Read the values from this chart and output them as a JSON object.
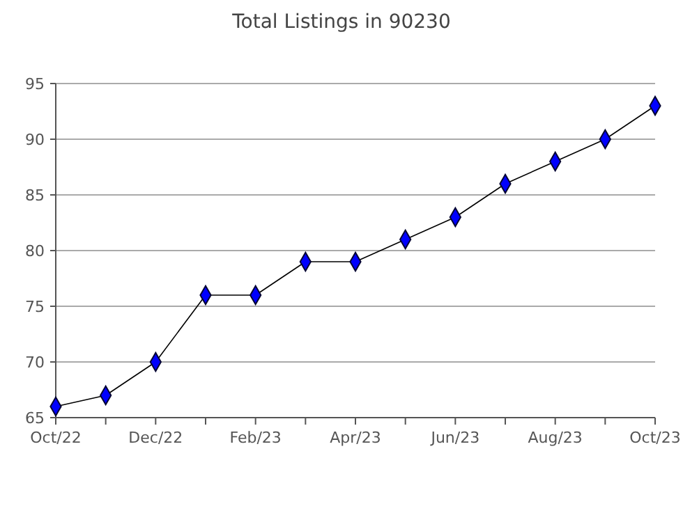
{
  "chart_data": {
    "type": "line",
    "title": "Total Listings in 90230",
    "categories": [
      "Oct/22",
      null,
      "Dec/22",
      null,
      "Feb/23",
      null,
      "Apr/23",
      null,
      "Jun/23",
      null,
      "Aug/23",
      null,
      "Oct/23"
    ],
    "series": [
      {
        "color": "#0000ff",
        "values": [
          66,
          67,
          70,
          76,
          76,
          79,
          79,
          81,
          83,
          86,
          88,
          90,
          93
        ]
      }
    ],
    "ylim": [
      65,
      95
    ],
    "yticks": [
      65,
      70,
      75,
      80,
      85,
      90,
      95
    ],
    "grid": "y",
    "marker": "diamond",
    "line_style": "solid"
  }
}
